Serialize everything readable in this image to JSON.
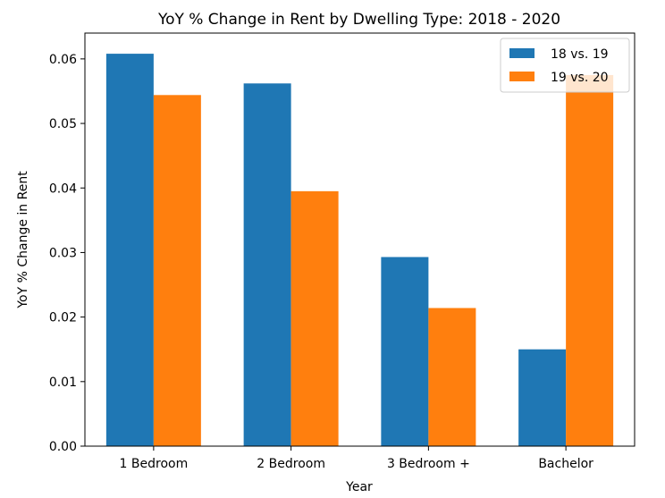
{
  "chart_data": {
    "type": "bar",
    "title": "YoY % Change in Rent by Dwelling Type: 2018 - 2020",
    "xlabel": "Year",
    "ylabel": "YoY % Change in Rent",
    "categories": [
      "1 Bedroom",
      "2 Bedroom",
      "3 Bedroom +",
      "Bachelor"
    ],
    "series": [
      {
        "name": "18 vs. 19",
        "values": [
          0.0608,
          0.0562,
          0.0293,
          0.015
        ],
        "color": "#1f77b4"
      },
      {
        "name": "19 vs. 20",
        "values": [
          0.0544,
          0.0395,
          0.0214,
          0.0575
        ],
        "color": "#ff7f0e"
      }
    ],
    "ylim": [
      0,
      0.064
    ],
    "yticks": [
      "0.00",
      "0.01",
      "0.02",
      "0.03",
      "0.04",
      "0.05",
      "0.06"
    ],
    "grid": false,
    "legend_position": "top-right"
  }
}
